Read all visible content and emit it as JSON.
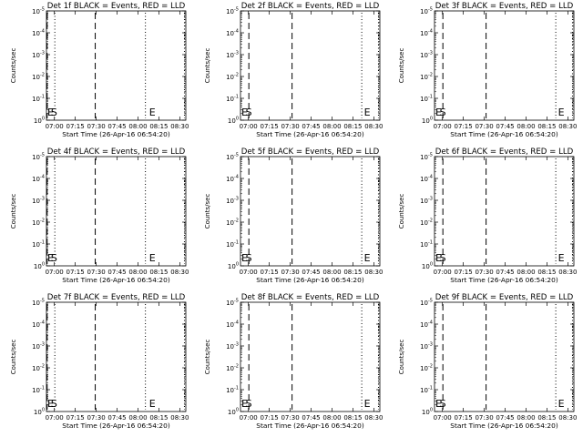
{
  "figure": {
    "background": "#ffffff",
    "foreground": "#000000"
  },
  "chart_data": [
    {
      "type": "line",
      "title": "Det 1f BLACK = Events, RED = LLD",
      "xlabel": "Start Time (26-Apr-16 06:54:20)",
      "ylabel": "Counts/sec",
      "x_ticks": [
        "07:00",
        "07:15",
        "07:30",
        "07:45",
        "08:00",
        "08:15",
        "08:30"
      ],
      "y_ticks": [
        "10^0",
        "10^-1",
        "10^-2",
        "10^-3",
        "10^-4",
        "10^-5"
      ],
      "xlim_minutes_after_start": [
        0,
        100
      ],
      "y_scale": "log",
      "series": [],
      "vlines": [
        {
          "style": "dashed",
          "minutes_after_start": 0.5
        },
        {
          "style": "dotted",
          "minutes_after_start": 6
        },
        {
          "style": "dashed",
          "minutes_after_start": 35
        },
        {
          "style": "dotted",
          "minutes_after_start": 71
        },
        {
          "style": "dotted",
          "minutes_after_start": 99
        }
      ],
      "markers": [
        {
          "text": "E",
          "minutes_after_start": 0
        },
        {
          "text": "S",
          "minutes_after_start": 2.5
        },
        {
          "text": "E",
          "minutes_after_start": 73
        }
      ]
    },
    {
      "type": "line",
      "title": "Det 2f BLACK = Events, RED = LLD",
      "xlabel": "Start Time (26-Apr-16 06:54:20)",
      "ylabel": "Counts/sec",
      "x_ticks": [
        "07:00",
        "07:15",
        "07:30",
        "07:45",
        "08:00",
        "08:15",
        "08:30"
      ],
      "y_ticks": [
        "10^0",
        "10^-1",
        "10^-2",
        "10^-3",
        "10^-4",
        "10^-5"
      ],
      "xlim_minutes_after_start": [
        0,
        100
      ],
      "y_scale": "log",
      "series": [],
      "vlines": [
        {
          "style": "dashed",
          "minutes_after_start": 6
        },
        {
          "style": "dashed",
          "minutes_after_start": 37
        },
        {
          "style": "dotted",
          "minutes_after_start": 87
        },
        {
          "style": "dotted",
          "minutes_after_start": 99
        }
      ],
      "markers": [
        {
          "text": "E",
          "minutes_after_start": 0
        },
        {
          "text": "S",
          "minutes_after_start": 3
        },
        {
          "text": "E",
          "minutes_after_start": 88
        }
      ]
    },
    {
      "type": "line",
      "title": "Det 3f BLACK = Events, RED = LLD",
      "xlabel": "Start Time (26-Apr-16 06:54:20)",
      "ylabel": "Counts/sec",
      "x_ticks": [
        "07:00",
        "07:15",
        "07:30",
        "07:45",
        "08:00",
        "08:15",
        "08:30"
      ],
      "y_ticks": [
        "10^0",
        "10^-1",
        "10^-2",
        "10^-3",
        "10^-4",
        "10^-5"
      ],
      "xlim_minutes_after_start": [
        0,
        100
      ],
      "y_scale": "log",
      "series": [],
      "vlines": [
        {
          "style": "dashed",
          "minutes_after_start": 6
        },
        {
          "style": "dashed",
          "minutes_after_start": 37
        },
        {
          "style": "dotted",
          "minutes_after_start": 87
        },
        {
          "style": "dotted",
          "minutes_after_start": 99
        }
      ],
      "markers": [
        {
          "text": "E",
          "minutes_after_start": 0
        },
        {
          "text": "S",
          "minutes_after_start": 3
        },
        {
          "text": "E",
          "minutes_after_start": 88
        }
      ]
    },
    {
      "type": "line",
      "title": "Det 4f BLACK = Events, RED = LLD",
      "xlabel": "Start Time (26-Apr-16 06:54:20)",
      "ylabel": "Counts/sec",
      "x_ticks": [
        "07:00",
        "07:15",
        "07:30",
        "07:45",
        "08:00",
        "08:15",
        "08:30"
      ],
      "y_ticks": [
        "10^0",
        "10^-1",
        "10^-2",
        "10^-3",
        "10^-4",
        "10^-5"
      ],
      "xlim_minutes_after_start": [
        0,
        100
      ],
      "y_scale": "log",
      "series": [],
      "vlines": [
        {
          "style": "dashed",
          "minutes_after_start": 0.5
        },
        {
          "style": "dotted",
          "minutes_after_start": 6
        },
        {
          "style": "dashed",
          "minutes_after_start": 35
        },
        {
          "style": "dotted",
          "minutes_after_start": 71
        },
        {
          "style": "dotted",
          "minutes_after_start": 99
        }
      ],
      "markers": [
        {
          "text": "E",
          "minutes_after_start": 0
        },
        {
          "text": "S",
          "minutes_after_start": 2.5
        },
        {
          "text": "E",
          "minutes_after_start": 73
        }
      ]
    },
    {
      "type": "line",
      "title": "Det 5f BLACK = Events, RED = LLD",
      "xlabel": "Start Time (26-Apr-16 06:54:20)",
      "ylabel": "Counts/sec",
      "x_ticks": [
        "07:00",
        "07:15",
        "07:30",
        "07:45",
        "08:00",
        "08:15",
        "08:30"
      ],
      "y_ticks": [
        "10^0",
        "10^-1",
        "10^-2",
        "10^-3",
        "10^-4",
        "10^-5"
      ],
      "xlim_minutes_after_start": [
        0,
        100
      ],
      "y_scale": "log",
      "series": [],
      "vlines": [
        {
          "style": "dashed",
          "minutes_after_start": 6
        },
        {
          "style": "dashed",
          "minutes_after_start": 37
        },
        {
          "style": "dotted",
          "minutes_after_start": 87
        },
        {
          "style": "dotted",
          "minutes_after_start": 99
        }
      ],
      "markers": [
        {
          "text": "E",
          "minutes_after_start": 0
        },
        {
          "text": "S",
          "minutes_after_start": 3
        },
        {
          "text": "E",
          "minutes_after_start": 88
        }
      ]
    },
    {
      "type": "line",
      "title": "Det 6f BLACK = Events, RED = LLD",
      "xlabel": "Start Time (26-Apr-16 06:54:20)",
      "ylabel": "Counts/sec",
      "x_ticks": [
        "07:00",
        "07:15",
        "07:30",
        "07:45",
        "08:00",
        "08:15",
        "08:30"
      ],
      "y_ticks": [
        "10^0",
        "10^-1",
        "10^-2",
        "10^-3",
        "10^-4",
        "10^-5"
      ],
      "xlim_minutes_after_start": [
        0,
        100
      ],
      "y_scale": "log",
      "series": [],
      "vlines": [
        {
          "style": "dashed",
          "minutes_after_start": 6
        },
        {
          "style": "dashed",
          "minutes_after_start": 37
        },
        {
          "style": "dotted",
          "minutes_after_start": 87
        },
        {
          "style": "dotted",
          "minutes_after_start": 99
        }
      ],
      "markers": [
        {
          "text": "E",
          "minutes_after_start": 0
        },
        {
          "text": "S",
          "minutes_after_start": 3
        },
        {
          "text": "E",
          "minutes_after_start": 88
        }
      ]
    },
    {
      "type": "line",
      "title": "Det 7f BLACK = Events, RED = LLD",
      "xlabel": "Start Time (26-Apr-16 06:54:20)",
      "ylabel": "Counts/sec",
      "x_ticks": [
        "07:00",
        "07:15",
        "07:30",
        "07:45",
        "08:00",
        "08:15",
        "08:30"
      ],
      "y_ticks": [
        "10^0",
        "10^-1",
        "10^-2",
        "10^-3",
        "10^-4",
        "10^-5"
      ],
      "xlim_minutes_after_start": [
        0,
        100
      ],
      "y_scale": "log",
      "series": [],
      "vlines": [
        {
          "style": "dashed",
          "minutes_after_start": 0.5
        },
        {
          "style": "dotted",
          "minutes_after_start": 6
        },
        {
          "style": "dashed",
          "minutes_after_start": 35
        },
        {
          "style": "dotted",
          "minutes_after_start": 71
        },
        {
          "style": "dotted",
          "minutes_after_start": 99
        }
      ],
      "markers": [
        {
          "text": "E",
          "minutes_after_start": 0
        },
        {
          "text": "S",
          "minutes_after_start": 2.5
        },
        {
          "text": "E",
          "minutes_after_start": 73
        }
      ]
    },
    {
      "type": "line",
      "title": "Det 8f BLACK = Events, RED = LLD",
      "xlabel": "Start Time (26-Apr-16 06:54:20)",
      "ylabel": "Counts/sec",
      "x_ticks": [
        "07:00",
        "07:15",
        "07:30",
        "07:45",
        "08:00",
        "08:15",
        "08:30"
      ],
      "y_ticks": [
        "10^0",
        "10^-1",
        "10^-2",
        "10^-3",
        "10^-4",
        "10^-5"
      ],
      "xlim_minutes_after_start": [
        0,
        100
      ],
      "y_scale": "log",
      "series": [],
      "vlines": [
        {
          "style": "dashed",
          "minutes_after_start": 6
        },
        {
          "style": "dashed",
          "minutes_after_start": 37
        },
        {
          "style": "dotted",
          "minutes_after_start": 87
        },
        {
          "style": "dotted",
          "minutes_after_start": 99
        }
      ],
      "markers": [
        {
          "text": "E",
          "minutes_after_start": 0
        },
        {
          "text": "S",
          "minutes_after_start": 3
        },
        {
          "text": "E",
          "minutes_after_start": 88
        }
      ]
    },
    {
      "type": "line",
      "title": "Det 9f BLACK = Events, RED = LLD",
      "xlabel": "Start Time (26-Apr-16 06:54:20)",
      "ylabel": "Counts/sec",
      "x_ticks": [
        "07:00",
        "07:15",
        "07:30",
        "07:45",
        "08:00",
        "08:15",
        "08:30"
      ],
      "y_ticks": [
        "10^0",
        "10^-1",
        "10^-2",
        "10^-3",
        "10^-4",
        "10^-5"
      ],
      "xlim_minutes_after_start": [
        0,
        100
      ],
      "y_scale": "log",
      "series": [],
      "vlines": [
        {
          "style": "dashed",
          "minutes_after_start": 6
        },
        {
          "style": "dashed",
          "minutes_after_start": 37
        },
        {
          "style": "dotted",
          "minutes_after_start": 87
        },
        {
          "style": "dotted",
          "minutes_after_start": 99
        }
      ],
      "markers": [
        {
          "text": "E",
          "minutes_after_start": 0
        },
        {
          "text": "S",
          "minutes_after_start": 3
        },
        {
          "text": "E",
          "minutes_after_start": 88
        }
      ]
    }
  ]
}
